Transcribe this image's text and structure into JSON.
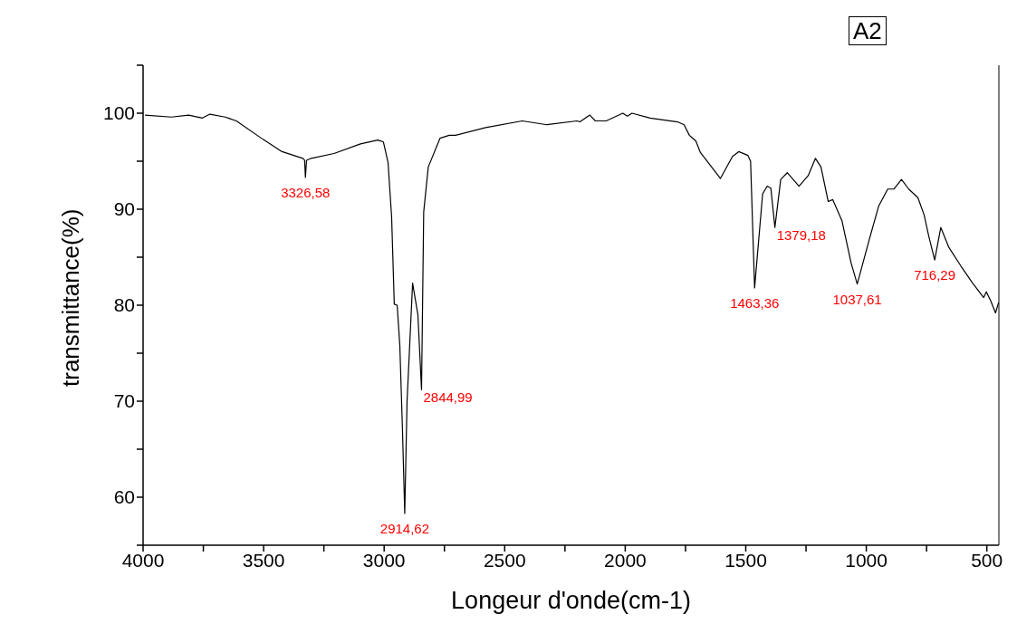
{
  "chart_data": {
    "type": "line",
    "title": "A2",
    "xlabel": "Longeur d'onde(cm-1)",
    "ylabel": "transmittance(%)",
    "xlim": [
      4000,
      450
    ],
    "ylim": [
      55,
      105
    ],
    "xticks": [
      4000,
      {
        "value": 3750,
        "label": null
      },
      3500,
      {
        "value": 3250,
        "label": null
      },
      3000,
      {
        "value": 2750,
        "label": null
      },
      2500,
      {
        "value": 2250,
        "label": null
      },
      2000,
      {
        "value": 1750,
        "label": null
      },
      1500,
      {
        "value": 1250,
        "label": null
      },
      1000,
      {
        "value": 750,
        "label": null
      },
      500
    ],
    "yticks": [
      {
        "value": 55,
        "label": null
      },
      60,
      {
        "value": 65,
        "label": null
      },
      70,
      {
        "value": 75,
        "label": null
      },
      80,
      {
        "value": 85,
        "label": null
      },
      90,
      {
        "value": 95,
        "label": null
      },
      100,
      {
        "value": 105,
        "label": null
      }
    ],
    "grid": false,
    "legend": false,
    "marker": "none",
    "line_style": "solid",
    "x": [
      3992,
      3883,
      3811,
      3754,
      3723,
      3659,
      3613,
      3504,
      3424,
      3337,
      3330,
      3326.58,
      3322,
      3303,
      3208,
      3098,
      3026,
      3003,
      2984,
      2969,
      2958,
      2946,
      2935,
      2924,
      2914.62,
      2905,
      2882,
      2860,
      2844.99,
      2836,
      2817,
      2768,
      2730,
      2704,
      2579,
      2427,
      2325,
      2200,
      2188,
      2147,
      2124,
      2079,
      2010,
      1991,
      1972,
      1897,
      1783,
      1756,
      1734,
      1707,
      1688,
      1605,
      1555,
      1529,
      1491,
      1480,
      1463.36,
      1430,
      1411,
      1396,
      1379.18,
      1355,
      1328,
      1279,
      1241,
      1211,
      1188,
      1158,
      1139,
      1101,
      1063,
      1037.61,
      987,
      949,
      911,
      885,
      854,
      824,
      786,
      760,
      741,
      716.29,
      691,
      657,
      608,
      559,
      513,
      502,
      483,
      464,
      451
    ],
    "series": [
      {
        "color": "#000000",
        "values": [
          99.8,
          99.6,
          99.8,
          99.5,
          99.9,
          99.6,
          99.2,
          97.3,
          96.0,
          95.3,
          95.1,
          93.3,
          95.1,
          95.3,
          95.8,
          96.8,
          97.2,
          97.0,
          94.9,
          89.2,
          80.1,
          80.0,
          75.8,
          67.0,
          58.3,
          70.0,
          82.3,
          79.0,
          71.2,
          89.7,
          94.4,
          97.4,
          97.7,
          97.7,
          98.5,
          99.2,
          98.8,
          99.2,
          99.1,
          99.8,
          99.2,
          99.2,
          100.0,
          99.7,
          100.0,
          99.5,
          99.1,
          98.8,
          97.7,
          97.1,
          95.9,
          93.2,
          95.5,
          96.0,
          95.6,
          95.0,
          81.8,
          91.6,
          92.4,
          92.2,
          88.1,
          93.1,
          93.8,
          92.4,
          93.5,
          95.3,
          94.4,
          90.8,
          91.0,
          88.8,
          84.4,
          82.2,
          86.9,
          90.3,
          92.1,
          92.1,
          93.1,
          92.1,
          91.2,
          89.4,
          87.2,
          84.7,
          88.1,
          86.0,
          84.1,
          82.3,
          80.8,
          81.4,
          80.4,
          79.2,
          80.3
        ]
      }
    ],
    "annotations": [
      {
        "text": "3326,58",
        "x": 3326.58,
        "y": 93.3
      },
      {
        "text": "2914,62",
        "x": 2914.62,
        "y": 58.3
      },
      {
        "text": "2844,99",
        "x": 2844.99,
        "y": 71.2
      },
      {
        "text": "1463,36",
        "x": 1463.36,
        "y": 81.8
      },
      {
        "text": "1379,18",
        "x": 1379.18,
        "y": 88.1
      },
      {
        "text": "1037,61",
        "x": 1037.61,
        "y": 82.2
      },
      {
        "text": "716,29",
        "x": 716.29,
        "y": 84.7
      }
    ]
  }
}
